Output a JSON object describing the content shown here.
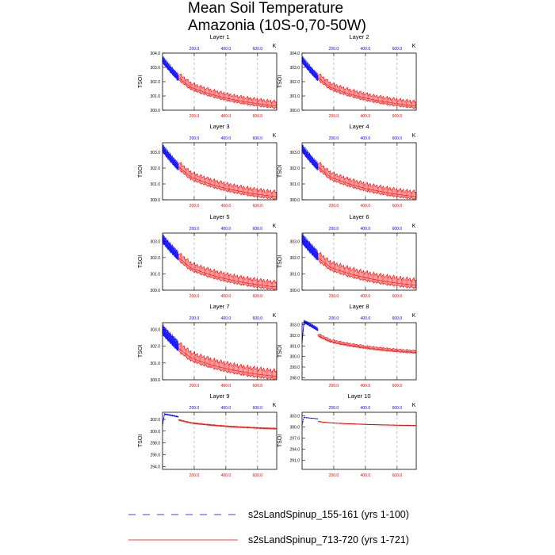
{
  "figure": {
    "title_line1": "Mean Soil Temperature",
    "title_line2": "Amazonia (10S-0,70-50W)",
    "unit": "K",
    "ylabel": "TSOI",
    "top_axis_color": "#0000ff",
    "bottom_axis_color": "#ff0000"
  },
  "legend": {
    "entries": [
      {
        "label": "s2sLandSpinup_155-161 (yrs 1-100)",
        "color": "#0000ff",
        "style": "dashed"
      },
      {
        "label": "s2sLandSpinup_713-720 (yrs 1-721)",
        "color": "#ff0000",
        "style": "solid"
      }
    ]
  },
  "chart_data": [
    {
      "type": "line",
      "title": "Layer 1",
      "ylabel": "TSOI",
      "unit": "K",
      "yticks": [
        "300.0",
        "301.0",
        "302.0",
        "303.0",
        "304.0"
      ],
      "ylim": [
        300.0,
        304.0
      ],
      "top_xticks": [
        "200.0",
        "400.0",
        "600.0"
      ],
      "bottom_xticks": [
        "200.0",
        "400.0",
        "600.0"
      ],
      "xlim": [
        0,
        721
      ],
      "series": [
        {
          "name": "s2sLandSpinup_155-161 (yrs 1-100)",
          "color": "#0000ff",
          "start": 303.5,
          "end": 302.2,
          "band": 0.4
        },
        {
          "name": "s2sLandSpinup_713-720 (yrs 1-721)",
          "color": "#ff0000",
          "start": 302.3,
          "end": 300.3,
          "band": 0.45
        }
      ]
    },
    {
      "type": "line",
      "title": "Layer 2",
      "ylabel": "TSOI",
      "unit": "K",
      "yticks": [
        "300.0",
        "301.0",
        "302.0",
        "303.0",
        "304.0"
      ],
      "ylim": [
        300.0,
        304.0
      ],
      "top_xticks": [
        "200.0",
        "400.0",
        "600.0"
      ],
      "bottom_xticks": [
        "200.0",
        "400.0",
        "600.0"
      ],
      "xlim": [
        0,
        721
      ],
      "series": [
        {
          "name": "s2sLandSpinup_155-161 (yrs 1-100)",
          "color": "#0000ff",
          "start": 303.5,
          "end": 302.2,
          "band": 0.4
        },
        {
          "name": "s2sLandSpinup_713-720 (yrs 1-721)",
          "color": "#ff0000",
          "start": 302.3,
          "end": 300.3,
          "band": 0.45
        }
      ]
    },
    {
      "type": "line",
      "title": "Layer 3",
      "ylabel": "TSOI",
      "unit": "K",
      "yticks": [
        "300.0",
        "301.0",
        "302.0",
        "303.0"
      ],
      "ylim": [
        300.0,
        303.6
      ],
      "top_xticks": [
        "200.0",
        "400.0",
        "600.0"
      ],
      "bottom_xticks": [
        "200.0",
        "400.0",
        "600.0"
      ],
      "xlim": [
        0,
        721
      ],
      "series": [
        {
          "name": "s2sLandSpinup_155-161 (yrs 1-100)",
          "color": "#0000ff",
          "start": 303.2,
          "end": 302.0,
          "band": 0.4
        },
        {
          "name": "s2sLandSpinup_713-720 (yrs 1-721)",
          "color": "#ff0000",
          "start": 302.1,
          "end": 300.2,
          "band": 0.45
        }
      ]
    },
    {
      "type": "line",
      "title": "Layer 4",
      "ylabel": "TSOI",
      "unit": "K",
      "yticks": [
        "300.0",
        "301.0",
        "302.0",
        "303.0"
      ],
      "ylim": [
        300.0,
        303.6
      ],
      "top_xticks": [
        "200.0",
        "400.0",
        "600.0"
      ],
      "bottom_xticks": [
        "200.0",
        "400.0",
        "600.0"
      ],
      "xlim": [
        0,
        721
      ],
      "series": [
        {
          "name": "s2sLandSpinup_155-161 (yrs 1-100)",
          "color": "#0000ff",
          "start": 303.2,
          "end": 302.0,
          "band": 0.4
        },
        {
          "name": "s2sLandSpinup_713-720 (yrs 1-721)",
          "color": "#ff0000",
          "start": 302.1,
          "end": 300.2,
          "band": 0.45
        }
      ]
    },
    {
      "type": "line",
      "title": "Layer 5",
      "ylabel": "TSOI",
      "unit": "K",
      "yticks": [
        "300.0",
        "301.0",
        "302.0",
        "303.0"
      ],
      "ylim": [
        300.0,
        303.5
      ],
      "top_xticks": [
        "200.0",
        "400.0",
        "600.0"
      ],
      "bottom_xticks": [
        "200.0",
        "400.0",
        "600.0"
      ],
      "xlim": [
        0,
        721
      ],
      "series": [
        {
          "name": "s2sLandSpinup_155-161 (yrs 1-100)",
          "color": "#0000ff",
          "start": 303.1,
          "end": 302.0,
          "band": 0.45
        },
        {
          "name": "s2sLandSpinup_713-720 (yrs 1-721)",
          "color": "#ff0000",
          "start": 302.0,
          "end": 300.2,
          "band": 0.45
        }
      ]
    },
    {
      "type": "line",
      "title": "Layer 6",
      "ylabel": "TSOI",
      "unit": "K",
      "yticks": [
        "300.0",
        "301.0",
        "302.0",
        "303.0"
      ],
      "ylim": [
        300.0,
        303.5
      ],
      "top_xticks": [
        "200.0",
        "400.0",
        "600.0"
      ],
      "bottom_xticks": [
        "200.0",
        "400.0",
        "600.0"
      ],
      "xlim": [
        0,
        721
      ],
      "series": [
        {
          "name": "s2sLandSpinup_155-161 (yrs 1-100)",
          "color": "#0000ff",
          "start": 303.1,
          "end": 302.0,
          "band": 0.5
        },
        {
          "name": "s2sLandSpinup_713-720 (yrs 1-721)",
          "color": "#ff0000",
          "start": 302.0,
          "end": 300.3,
          "band": 0.5
        }
      ]
    },
    {
      "type": "line",
      "title": "Layer 7",
      "ylabel": "TSOI",
      "unit": "K",
      "yticks": [
        "300.0",
        "301.0",
        "302.0",
        "303.0"
      ],
      "ylim": [
        300.0,
        303.4
      ],
      "top_xticks": [
        "200.0",
        "400.0",
        "600.0"
      ],
      "bottom_xticks": [
        "200.0",
        "400.0",
        "600.0"
      ],
      "xlim": [
        0,
        721
      ],
      "series": [
        {
          "name": "s2sLandSpinup_155-161 (yrs 1-100)",
          "color": "#0000ff",
          "start": 302.9,
          "end": 301.9,
          "band": 0.5
        },
        {
          "name": "s2sLandSpinup_713-720 (yrs 1-721)",
          "color": "#ff0000",
          "start": 301.9,
          "end": 300.2,
          "band": 0.5
        }
      ]
    },
    {
      "type": "line",
      "title": "Layer 8",
      "ylabel": "TSOI",
      "unit": "K",
      "yticks": [
        "298.0",
        "299.0",
        "300.0",
        "301.0",
        "302.0",
        "303.0"
      ],
      "ylim": [
        297.8,
        303.2
      ],
      "top_xticks": [
        "200.0",
        "400.0",
        "600.0"
      ],
      "bottom_xticks": [
        "200.0",
        "400.0",
        "600.0"
      ],
      "xlim": [
        0,
        721
      ],
      "series": [
        {
          "name": "s2sLandSpinup_155-161 (yrs 1-100)",
          "color": "#0000ff",
          "start": 302.9,
          "end": 302.1,
          "band": 0.25
        },
        {
          "name": "s2sLandSpinup_713-720 (yrs 1-721)",
          "color": "#ff0000",
          "start": 302.0,
          "end": 300.4,
          "band": 0.25
        }
      ]
    },
    {
      "type": "line",
      "title": "Layer 9",
      "ylabel": "TSOI",
      "unit": "K",
      "yticks": [
        "294.0",
        "296.0",
        "298.0",
        "300.0",
        "302.0"
      ],
      "ylim": [
        293.5,
        303.2
      ],
      "top_xticks": [
        "200.0",
        "400.0",
        "600.0"
      ],
      "bottom_xticks": [
        "200.0",
        "400.0",
        "600.0"
      ],
      "xlim": [
        0,
        721
      ],
      "series": [
        {
          "name": "s2sLandSpinup_155-161 (yrs 1-100)",
          "color": "#0000ff",
          "start": 302.5,
          "end": 302.0,
          "band": 0.15
        },
        {
          "name": "s2sLandSpinup_713-720 (yrs 1-721)",
          "color": "#ff0000",
          "start": 301.9,
          "end": 300.4,
          "band": 0.15
        }
      ]
    },
    {
      "type": "line",
      "title": "Layer 10",
      "ylabel": "TSOI",
      "unit": "K",
      "yticks": [
        "291.0",
        "294.0",
        "297.0",
        "300.0",
        "303.0"
      ],
      "ylim": [
        288.5,
        304.0
      ],
      "top_xticks": [
        "200.0",
        "400.0",
        "600.0"
      ],
      "bottom_xticks": [
        "200.0",
        "400.0",
        "600.0"
      ],
      "xlim": [
        0,
        721
      ],
      "series": [
        {
          "name": "s2sLandSpinup_155-161 (yrs 1-100)",
          "color": "#0000ff",
          "start": 302.2,
          "end": 301.8,
          "band": 0.1
        },
        {
          "name": "s2sLandSpinup_713-720 (yrs 1-721)",
          "color": "#ff0000",
          "start": 301.5,
          "end": 300.4,
          "band": 0.1
        }
      ]
    }
  ]
}
